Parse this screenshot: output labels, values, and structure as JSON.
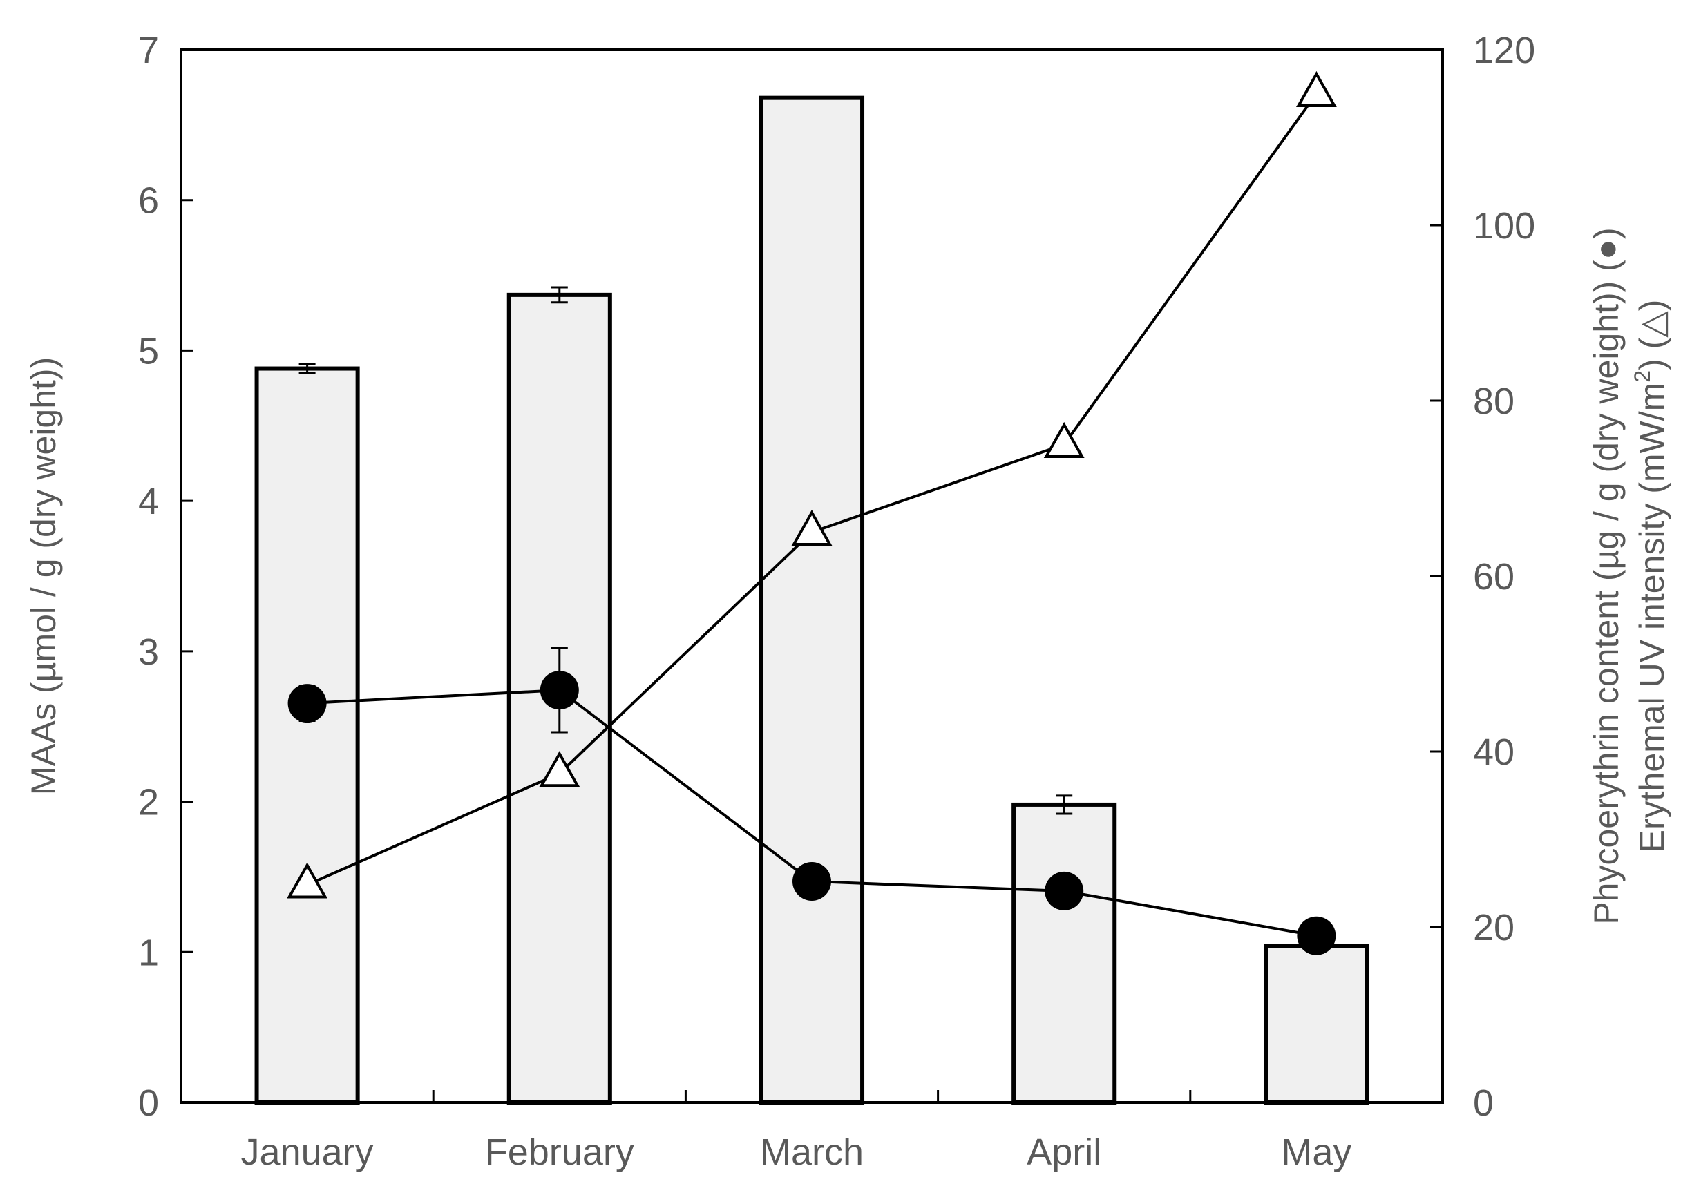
{
  "chart_data": {
    "type": "bar",
    "categories": [
      "January",
      "February",
      "March",
      "April",
      "May"
    ],
    "y_left": {
      "label": "MAAs (µmol / g (dry weight))",
      "lim": [
        0,
        7
      ],
      "ticks": [
        0,
        1,
        2,
        3,
        4,
        5,
        6,
        7
      ]
    },
    "y_right": {
      "label_line1": "Phycoerythrin content (µg / g (dry weight)) (●)",
      "label_line2_prefix": "Erythemal UV intensity (mW/m",
      "label_line2_sup": "2",
      "label_line2_suffix": ") (△)",
      "lim": [
        0,
        120
      ],
      "ticks": [
        0,
        20,
        40,
        60,
        80,
        100,
        120
      ]
    },
    "grid": false,
    "series": [
      {
        "type": "bar",
        "axis": "left",
        "values": [
          4.88,
          5.37,
          6.68,
          1.98,
          1.04
        ],
        "errors": [
          0.03,
          0.05,
          0,
          0.06,
          0
        ],
        "color": "#f0f0f0"
      },
      {
        "type": "line",
        "axis": "right",
        "marker": "circle",
        "values": [
          45.5,
          47,
          25.2,
          24.1,
          19
        ],
        "errors": [
          2,
          4.8,
          0,
          0,
          0
        ],
        "color": "#000000"
      },
      {
        "type": "line",
        "axis": "right",
        "marker": "triangle",
        "values": [
          24.8,
          37.5,
          65,
          75,
          115
        ],
        "errors": [
          0,
          0,
          0,
          0,
          0
        ],
        "color": "#000000"
      }
    ]
  }
}
